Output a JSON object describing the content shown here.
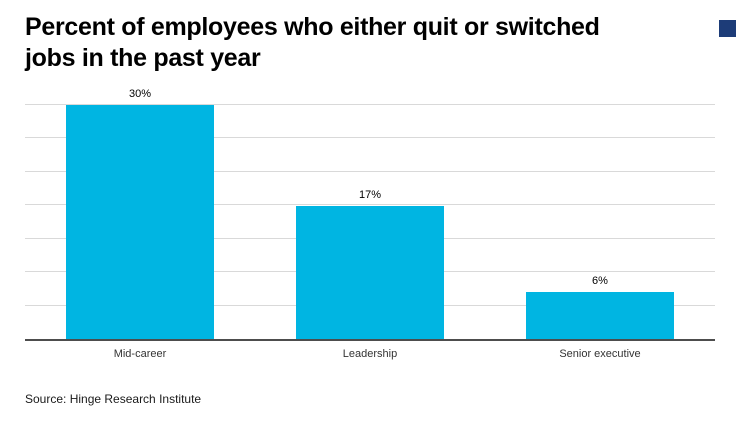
{
  "header": {
    "title_lines": [
      "Percent of employees who either quit or switched",
      "jobs in the past year"
    ]
  },
  "chart_data": {
    "type": "bar",
    "title": "Percent of employees who either quit or switched jobs in the past year",
    "categories": [
      "Mid-career",
      "Leadership",
      "Senior executive"
    ],
    "values": [
      30,
      17,
      6
    ],
    "value_labels": [
      "30%",
      "17%",
      "6%"
    ],
    "xlabel": "",
    "ylabel": "",
    "ylim": [
      0,
      30
    ],
    "gridline_count": 7,
    "grid": true,
    "legend": false
  },
  "footer": {
    "source": "Source: Hinge Research Institute"
  },
  "colors": {
    "bar": "#00b5e2",
    "brand_square": "#1d3c78",
    "gridline": "#d9d9d9",
    "baseline": "#4d4d4d"
  }
}
